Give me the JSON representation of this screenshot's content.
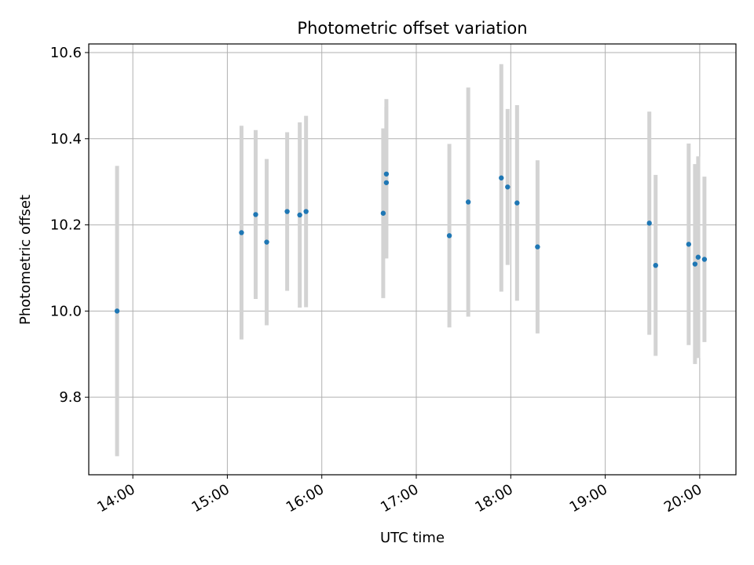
{
  "chart_data": {
    "type": "scatter",
    "title": "Photometric offset variation",
    "xlabel": "UTC time",
    "ylabel": "Photometric offset",
    "x_ticks": [
      "14:00",
      "15:00",
      "16:00",
      "17:00",
      "18:00",
      "19:00",
      "20:00"
    ],
    "y_ticks": [
      "9.8",
      "10.0",
      "10.2",
      "10.4",
      "10.6"
    ],
    "xlim": [
      "13:32",
      "20:23"
    ],
    "ylim": [
      9.62,
      10.62
    ],
    "grid": true,
    "colors": {
      "point": "#1f77b4",
      "errorbar": "#d3d3d3",
      "grid": "#b0b0b0"
    },
    "series": [
      {
        "points": [
          {
            "time": "13:50",
            "value": 10.0,
            "error": 0.337
          },
          {
            "time": "15:09",
            "value": 10.182,
            "error": 0.248
          },
          {
            "time": "15:18",
            "value": 10.224,
            "error": 0.196
          },
          {
            "time": "15:25",
            "value": 10.16,
            "error": 0.193
          },
          {
            "time": "15:38",
            "value": 10.231,
            "error": 0.184
          },
          {
            "time": "15:46",
            "value": 10.223,
            "error": 0.215
          },
          {
            "time": "15:50",
            "value": 10.231,
            "error": 0.222
          },
          {
            "time": "16:39",
            "value": 10.227,
            "error": 0.197
          },
          {
            "time": "16:41",
            "value": 10.318,
            "error": 0.174
          },
          {
            "time": "16:41",
            "value": 10.298,
            "error": 0.176
          },
          {
            "time": "17:21",
            "value": 10.175,
            "error": 0.213
          },
          {
            "time": "17:33",
            "value": 10.253,
            "error": 0.266
          },
          {
            "time": "17:54",
            "value": 10.309,
            "error": 0.264
          },
          {
            "time": "17:58",
            "value": 10.288,
            "error": 0.181
          },
          {
            "time": "18:04",
            "value": 10.251,
            "error": 0.227
          },
          {
            "time": "18:17",
            "value": 10.149,
            "error": 0.201
          },
          {
            "time": "19:28",
            "value": 10.204,
            "error": 0.259
          },
          {
            "time": "19:32",
            "value": 10.106,
            "error": 0.21
          },
          {
            "time": "19:53",
            "value": 10.155,
            "error": 0.234
          },
          {
            "time": "19:57",
            "value": 10.109,
            "error": 0.232
          },
          {
            "time": "19:59",
            "value": 10.125,
            "error": 0.234
          },
          {
            "time": "20:03",
            "value": 10.12,
            "error": 0.192
          }
        ]
      }
    ]
  }
}
